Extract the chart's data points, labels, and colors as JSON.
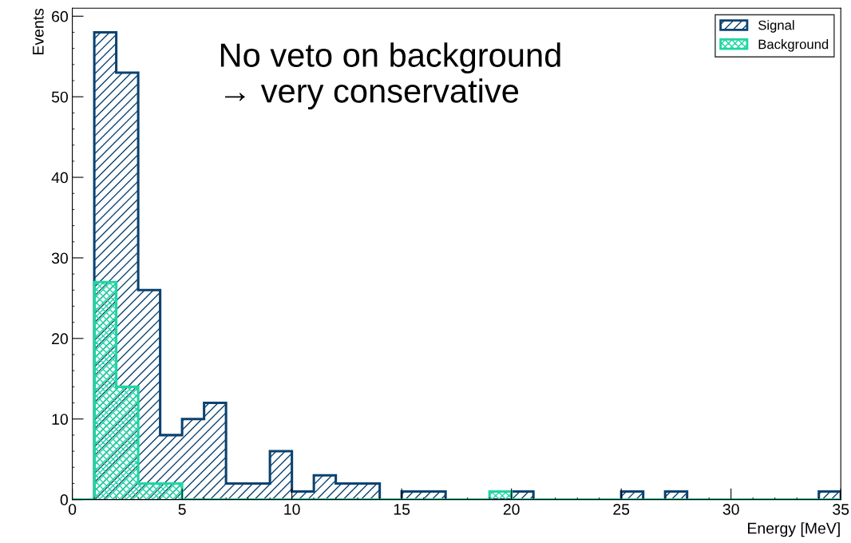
{
  "chart_data": {
    "type": "histogram",
    "xlabel": "Energy [MeV]",
    "ylabel": "Events",
    "annotations": [
      "No veto on background\n→ very conservative"
    ],
    "bins": [
      0,
      1,
      2,
      3,
      4,
      5,
      6,
      7,
      8,
      9,
      10,
      11,
      12,
      13,
      14,
      15,
      16,
      17,
      18,
      19,
      20,
      21,
      22,
      23,
      24,
      25,
      26,
      27,
      28,
      29,
      30,
      31,
      32,
      33,
      34,
      35
    ],
    "series": [
      {
        "name": "Signal",
        "color": "#0b4270",
        "values": [
          0,
          58,
          53,
          26,
          8,
          10,
          12,
          2,
          2,
          6,
          1,
          3,
          2,
          2,
          0,
          1,
          1,
          0,
          0,
          0,
          1,
          0,
          0,
          0,
          0,
          1,
          0,
          1,
          0,
          0,
          0,
          0,
          0,
          0,
          1
        ]
      },
      {
        "name": "Background",
        "color": "#1fd6a2",
        "values": [
          0,
          27,
          14,
          2,
          2,
          0,
          0,
          0,
          0,
          0,
          0,
          0,
          0,
          0,
          0,
          0,
          0,
          0,
          0,
          1,
          0,
          0,
          0,
          0,
          0,
          0,
          0,
          0,
          0,
          0,
          0,
          0,
          0,
          0,
          0
        ]
      }
    ],
    "xlim": [
      0,
      35
    ],
    "xticks": [
      0,
      5,
      10,
      15,
      20,
      25,
      30,
      35
    ],
    "ylim": [
      0,
      61
    ],
    "yticks": [
      0,
      10,
      20,
      30,
      40,
      50,
      60
    ],
    "grid": false,
    "legend": "top right"
  }
}
